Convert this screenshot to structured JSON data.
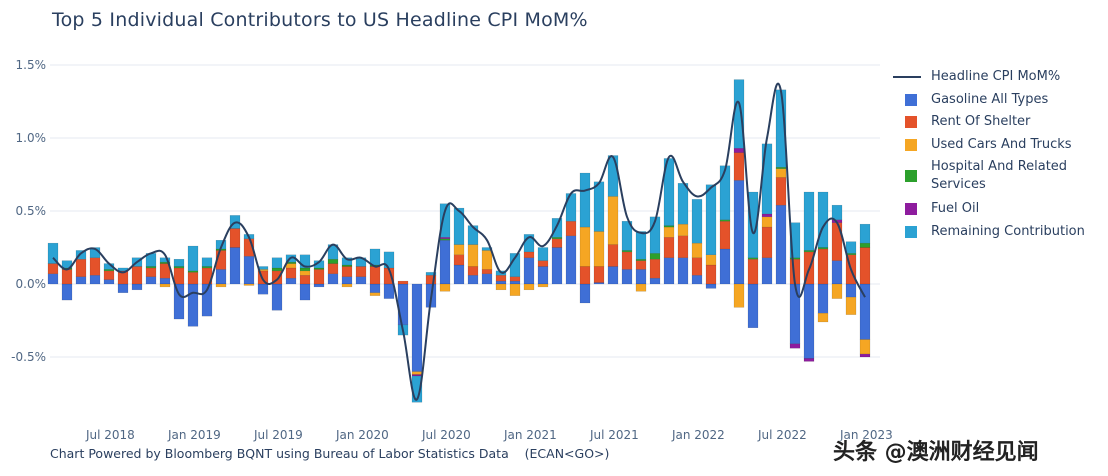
{
  "chart_data": {
    "type": "bar",
    "stacking": "relative",
    "title": "Top 5 Individual Contributors to US Headline CPI MoM%",
    "xlabel": "",
    "ylabel": "",
    "ylim": [
      -0.85,
      1.55
    ],
    "grid": true,
    "legend_position": "right",
    "yticks": [
      1.5,
      1.0,
      0.5,
      0.0,
      -0.5
    ],
    "ytick_labels": [
      "1.5%",
      "1.0%",
      "0.5%",
      "0.0%",
      "-0.5%"
    ],
    "xtick_labels": [
      "Jul 2018",
      "Jan 2019",
      "Jul 2019",
      "Jan 2020",
      "Jul 2020",
      "Jan 2021",
      "Jul 2021",
      "Jan 2022",
      "Jul 2022",
      "Jan 2023"
    ],
    "xtick_index": [
      4.1,
      10.1,
      16.1,
      22.1,
      28.1,
      34.1,
      40.1,
      46.1,
      52.1,
      58.1
    ],
    "categories": [
      "Feb 2018",
      "Mar 2018",
      "Apr 2018",
      "May 2018",
      "Jun 2018",
      "Jul 2018",
      "Aug 2018",
      "Sep 2018",
      "Oct 2018",
      "Nov 2018",
      "Dec 2018",
      "Jan 2019",
      "Feb 2019",
      "Mar 2019",
      "Apr 2019",
      "May 2019",
      "Jun 2019",
      "Jul 2019",
      "Aug 2019",
      "Sep 2019",
      "Oct 2019",
      "Nov 2019",
      "Dec 2019",
      "Jan 2020",
      "Feb 2020",
      "Mar 2020",
      "Apr 2020",
      "May 2020",
      "Jun 2020",
      "Jul 2020",
      "Aug 2020",
      "Sep 2020",
      "Oct 2020",
      "Nov 2020",
      "Dec 2020",
      "Jan 2021",
      "Feb 2021",
      "Mar 2021",
      "Apr 2021",
      "May 2021",
      "Jun 2021",
      "Jul 2021",
      "Aug 2021",
      "Sep 2021",
      "Oct 2021",
      "Nov 2021",
      "Dec 2021",
      "Jan 2022",
      "Feb 2022",
      "Mar 2022",
      "Apr 2022",
      "May 2022",
      "Jun 2022",
      "Jul 2022",
      "Aug 2022",
      "Sep 2022",
      "Oct 2022",
      "Nov 2022",
      "Dec 2022"
    ],
    "series": [
      {
        "name": "Gasoline All Types",
        "color": "#3f6fd6",
        "values": [
          0.07,
          -0.11,
          0.05,
          0.06,
          0.03,
          -0.06,
          -0.04,
          0.05,
          0.04,
          -0.24,
          -0.29,
          -0.22,
          0.1,
          0.25,
          0.19,
          -0.07,
          -0.18,
          0.04,
          -0.11,
          -0.02,
          0.07,
          0.05,
          0.05,
          -0.06,
          -0.1,
          -0.28,
          -0.6,
          -0.16,
          0.3,
          0.13,
          0.06,
          0.07,
          0.02,
          0.02,
          0.18,
          0.12,
          0.25,
          0.33,
          -0.13,
          0.01,
          0.12,
          0.1,
          0.1,
          0.04,
          0.18,
          0.18,
          0.06,
          -0.03,
          0.24,
          0.71,
          -0.3,
          0.18,
          0.54,
          -0.41,
          -0.51,
          -0.2,
          0.16,
          -0.09,
          -0.38
        ]
      },
      {
        "name": "Rent Of Shelter",
        "color": "#e4522a",
        "values": [
          0.07,
          0.1,
          0.12,
          0.12,
          0.06,
          0.09,
          0.12,
          0.06,
          0.1,
          0.11,
          0.08,
          0.11,
          0.13,
          0.13,
          0.12,
          0.09,
          0.09,
          0.07,
          0.06,
          0.1,
          0.07,
          0.07,
          0.07,
          0.12,
          0.11,
          0.02,
          0.0,
          0.06,
          0.0,
          0.07,
          0.06,
          0.03,
          0.04,
          0.03,
          0.04,
          0.04,
          0.06,
          0.1,
          0.12,
          0.11,
          0.15,
          0.12,
          0.06,
          0.13,
          0.14,
          0.15,
          0.12,
          0.13,
          0.19,
          0.19,
          0.17,
          0.21,
          0.19,
          0.17,
          0.22,
          0.24,
          0.26,
          0.2,
          0.25
        ]
      },
      {
        "name": "Used Cars And Trucks",
        "color": "#f5a623",
        "values": [
          0,
          0,
          0,
          0,
          0,
          0,
          0,
          0,
          -0.02,
          0,
          0,
          0,
          -0.02,
          0,
          -0.01,
          0.01,
          0,
          0.03,
          0.03,
          0,
          0,
          -0.02,
          0,
          -0.02,
          0,
          0,
          -0.02,
          0,
          -0.05,
          0.07,
          0.15,
          0.13,
          -0.04,
          -0.08,
          -0.04,
          -0.02,
          0,
          0,
          0.27,
          0.24,
          0.33,
          0,
          -0.05,
          0,
          0.07,
          0.08,
          0.1,
          0.07,
          0,
          -0.16,
          0,
          0.07,
          0.06,
          0,
          0,
          -0.06,
          -0.1,
          -0.12,
          -0.1
        ]
      },
      {
        "name": "Hospital And Related Services",
        "color": "#2ca02c",
        "values": [
          0,
          0.01,
          0,
          0,
          0.01,
          0,
          0,
          0.01,
          0.01,
          0.01,
          0.01,
          0.01,
          0.01,
          0,
          0,
          0,
          0.02,
          0.01,
          0.02,
          0.01,
          0.03,
          0.01,
          0,
          0.01,
          0,
          0,
          0,
          0,
          0.01,
          0,
          0,
          0,
          0,
          0,
          0,
          0,
          0.01,
          0,
          0,
          0,
          0,
          0.01,
          0.01,
          0.04,
          0.01,
          0,
          0,
          0,
          0.01,
          0,
          0.01,
          0,
          0.01,
          0.01,
          0.01,
          0.01,
          0,
          0.01,
          0.03
        ]
      },
      {
        "name": "Fuel Oil",
        "color": "#8e1c9e",
        "values": [
          0,
          0,
          0,
          0,
          0,
          0,
          0,
          0,
          0,
          0,
          0,
          0,
          0,
          0,
          0,
          0,
          0,
          0,
          0,
          0,
          0,
          0,
          0,
          0,
          0,
          0,
          -0.01,
          0,
          0.01,
          0,
          0,
          0,
          0,
          0,
          0,
          0,
          0,
          0,
          0,
          0,
          0,
          0,
          0,
          0,
          0,
          0,
          0,
          0,
          0,
          0.03,
          0,
          0.02,
          0,
          -0.03,
          -0.02,
          0,
          0.02,
          0,
          -0.02
        ]
      },
      {
        "name": "Remaining Contribution",
        "color": "#2ba2d3",
        "values": [
          0.14,
          0.05,
          0.06,
          0.07,
          0.04,
          0.02,
          0.06,
          0.09,
          0.03,
          0.05,
          0.17,
          0.06,
          0.06,
          0.09,
          0.03,
          0.02,
          0.07,
          0.05,
          0.09,
          0.05,
          0.1,
          0.05,
          0.06,
          0.11,
          0.11,
          -0.07,
          -0.18,
          0.02,
          0.23,
          0.25,
          0.13,
          0.02,
          0.03,
          0.16,
          0.12,
          0.09,
          0.13,
          0.19,
          0.37,
          0.34,
          0.28,
          0.2,
          0.19,
          0.25,
          0.46,
          0.28,
          0.3,
          0.48,
          0.37,
          0.47,
          0.45,
          0.48,
          0.53,
          0.24,
          0.4,
          0.38,
          0.1,
          0.08,
          0.13
        ]
      }
    ],
    "line": {
      "name": "Headline CPI MoM%",
      "color": "#2a3f5f",
      "values": [
        0.18,
        0.1,
        0.21,
        0.24,
        0.14,
        0.08,
        0.15,
        0.21,
        0.2,
        -0.07,
        -0.06,
        -0.04,
        0.25,
        0.42,
        0.32,
        0.03,
        0.03,
        0.18,
        0.12,
        0.15,
        0.27,
        0.17,
        0.18,
        0.12,
        0.1,
        -0.32,
        -0.79,
        -0.1,
        0.5,
        0.5,
        0.39,
        0.3,
        0.08,
        0.18,
        0.32,
        0.26,
        0.4,
        0.62,
        0.64,
        0.69,
        0.87,
        0.46,
        0.35,
        0.43,
        0.87,
        0.7,
        0.6,
        0.66,
        0.78,
        1.24,
        0.35,
        1.0,
        1.32,
        0.0,
        0.1,
        0.39,
        0.42,
        0.1,
        -0.09
      ]
    }
  },
  "footer": "Chart Powered by Bloomberg BQNT using Bureau of Labor Statistics Data    (ECAN<GO>)",
  "watermark": "头条 @澳洲财经见闻"
}
